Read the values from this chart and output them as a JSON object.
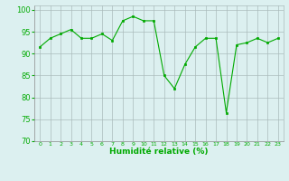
{
  "x": [
    0,
    1,
    2,
    3,
    4,
    5,
    6,
    7,
    8,
    9,
    10,
    11,
    12,
    13,
    14,
    15,
    16,
    17,
    18,
    19,
    20,
    21,
    22,
    23
  ],
  "y": [
    91.5,
    93.5,
    94.5,
    95.5,
    93.5,
    93.5,
    94.5,
    93.0,
    97.5,
    98.5,
    97.5,
    97.5,
    85.0,
    82.0,
    87.5,
    91.5,
    93.5,
    93.5,
    76.5,
    92.0,
    92.5,
    93.5,
    92.5,
    93.5
  ],
  "line_color": "#00aa00",
  "marker_color": "#00aa00",
  "bg_color": "#dcf0f0",
  "grid_color": "#aabbbb",
  "xlabel": "Humidité relative (%)",
  "ylim": [
    70,
    101
  ],
  "xlim": [
    -0.5,
    23.5
  ],
  "yticks": [
    70,
    75,
    80,
    85,
    90,
    95,
    100
  ],
  "xticks": [
    0,
    1,
    2,
    3,
    4,
    5,
    6,
    7,
    8,
    9,
    10,
    11,
    12,
    13,
    14,
    15,
    16,
    17,
    18,
    19,
    20,
    21,
    22,
    23
  ],
  "xtick_labels": [
    "0",
    "1",
    "2",
    "3",
    "4",
    "5",
    "6",
    "7",
    "8",
    "9",
    "10",
    "11",
    "12",
    "13",
    "14",
    "15",
    "16",
    "17",
    "18",
    "19",
    "20",
    "21",
    "22",
    "23"
  ],
  "figsize": [
    3.2,
    2.0
  ],
  "dpi": 100
}
